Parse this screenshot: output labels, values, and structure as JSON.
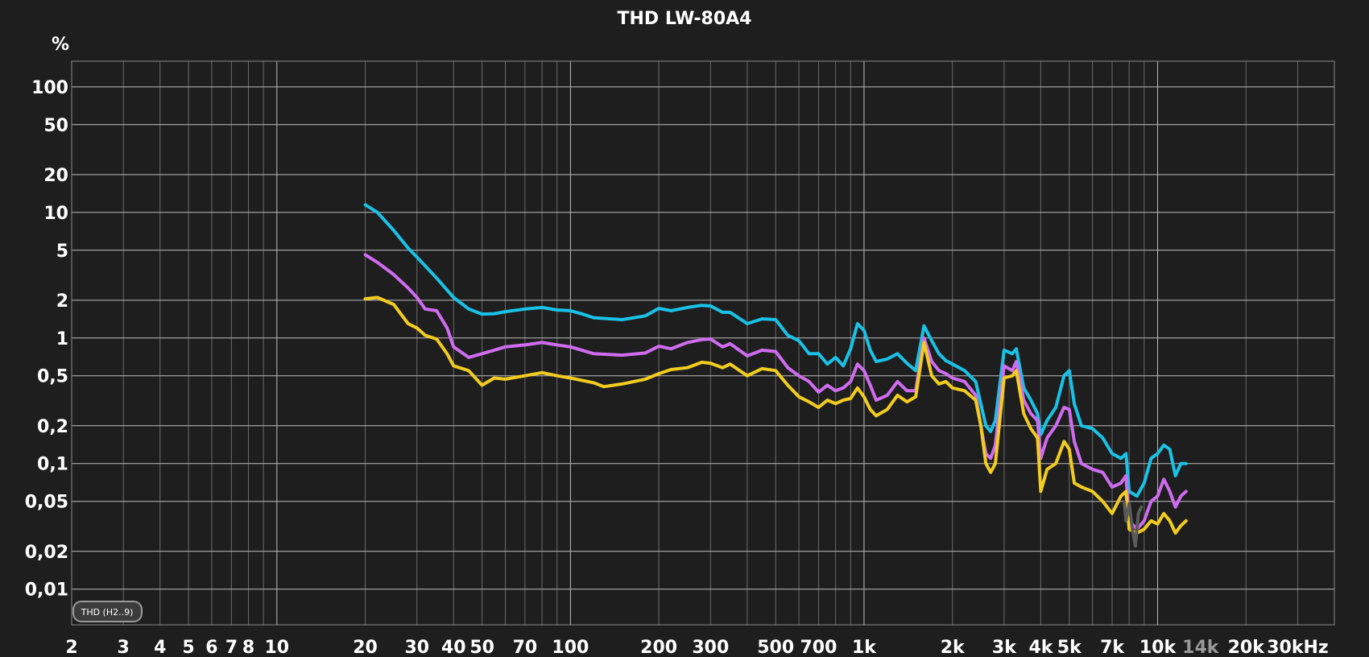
{
  "chart_data": {
    "type": "line",
    "title": "THD LW-80A4",
    "ylabel": "%",
    "xlabel": "",
    "x_scale": "log",
    "y_scale": "log",
    "xlim": [
      2,
      40000
    ],
    "ylim": [
      0.0052,
      160
    ],
    "grid": true,
    "legend": "none",
    "badge": "THD (H2..9)",
    "colors": {
      "background": "#1e1e1e",
      "grid": "#6a6a6a",
      "grid_major": "#bdbdbd"
    },
    "x_ticks": [
      {
        "value": 2,
        "label": "2"
      },
      {
        "value": 3,
        "label": "3"
      },
      {
        "value": 4,
        "label": "4"
      },
      {
        "value": 5,
        "label": "5"
      },
      {
        "value": 6,
        "label": "6"
      },
      {
        "value": 7,
        "label": "7"
      },
      {
        "value": 8,
        "label": "8"
      },
      {
        "value": 10,
        "label": "10"
      },
      {
        "value": 20,
        "label": "20"
      },
      {
        "value": 30,
        "label": "30"
      },
      {
        "value": 40,
        "label": "40"
      },
      {
        "value": 50,
        "label": "50"
      },
      {
        "value": 70,
        "label": "70"
      },
      {
        "value": 100,
        "label": "100"
      },
      {
        "value": 200,
        "label": "200"
      },
      {
        "value": 300,
        "label": "300"
      },
      {
        "value": 500,
        "label": "500"
      },
      {
        "value": 700,
        "label": "700"
      },
      {
        "value": 1000,
        "label": "1k"
      },
      {
        "value": 2000,
        "label": "2k"
      },
      {
        "value": 3000,
        "label": "3k"
      },
      {
        "value": 4000,
        "label": "4k"
      },
      {
        "value": 5000,
        "label": "5k"
      },
      {
        "value": 7000,
        "label": "7k"
      },
      {
        "value": 10000,
        "label": "10k"
      },
      {
        "value": 14000,
        "label": "14k",
        "dim": true
      },
      {
        "value": 20000,
        "label": "20k"
      },
      {
        "value": 30000,
        "label": "30kHz"
      }
    ],
    "y_ticks": [
      {
        "value": 100,
        "label": "100"
      },
      {
        "value": 50,
        "label": "50"
      },
      {
        "value": 20,
        "label": "20"
      },
      {
        "value": 10,
        "label": "10"
      },
      {
        "value": 5,
        "label": "5"
      },
      {
        "value": 2,
        "label": "2"
      },
      {
        "value": 1,
        "label": "1"
      },
      {
        "value": 0.5,
        "label": "0,5"
      },
      {
        "value": 0.2,
        "label": "0,2"
      },
      {
        "value": 0.1,
        "label": "0,1"
      },
      {
        "value": 0.05,
        "label": "0,05"
      },
      {
        "value": 0.02,
        "label": "0,02"
      },
      {
        "value": 0.01,
        "label": "0,01"
      }
    ],
    "series": [
      {
        "color": "#19c2e6",
        "points": [
          [
            20,
            11.5
          ],
          [
            22,
            10
          ],
          [
            25,
            7.2
          ],
          [
            28,
            5.2
          ],
          [
            30,
            4.4
          ],
          [
            35,
            3.0
          ],
          [
            40,
            2.1
          ],
          [
            45,
            1.7
          ],
          [
            50,
            1.55
          ],
          [
            55,
            1.56
          ],
          [
            60,
            1.62
          ],
          [
            70,
            1.7
          ],
          [
            80,
            1.75
          ],
          [
            90,
            1.67
          ],
          [
            100,
            1.65
          ],
          [
            110,
            1.55
          ],
          [
            120,
            1.45
          ],
          [
            150,
            1.4
          ],
          [
            180,
            1.5
          ],
          [
            200,
            1.72
          ],
          [
            220,
            1.65
          ],
          [
            250,
            1.75
          ],
          [
            280,
            1.82
          ],
          [
            300,
            1.8
          ],
          [
            330,
            1.6
          ],
          [
            350,
            1.6
          ],
          [
            400,
            1.3
          ],
          [
            450,
            1.42
          ],
          [
            500,
            1.4
          ],
          [
            550,
            1.05
          ],
          [
            600,
            0.95
          ],
          [
            650,
            0.75
          ],
          [
            700,
            0.75
          ],
          [
            750,
            0.62
          ],
          [
            800,
            0.7
          ],
          [
            850,
            0.6
          ],
          [
            900,
            0.82
          ],
          [
            950,
            1.3
          ],
          [
            1000,
            1.15
          ],
          [
            1050,
            0.8
          ],
          [
            1100,
            0.65
          ],
          [
            1200,
            0.68
          ],
          [
            1300,
            0.75
          ],
          [
            1400,
            0.63
          ],
          [
            1500,
            0.55
          ],
          [
            1600,
            1.25
          ],
          [
            1700,
            0.95
          ],
          [
            1800,
            0.75
          ],
          [
            1900,
            0.66
          ],
          [
            2000,
            0.62
          ],
          [
            2200,
            0.55
          ],
          [
            2400,
            0.45
          ],
          [
            2600,
            0.2
          ],
          [
            2700,
            0.18
          ],
          [
            2800,
            0.22
          ],
          [
            3000,
            0.8
          ],
          [
            3200,
            0.75
          ],
          [
            3300,
            0.82
          ],
          [
            3500,
            0.4
          ],
          [
            3700,
            0.32
          ],
          [
            3900,
            0.25
          ],
          [
            4000,
            0.17
          ],
          [
            4200,
            0.22
          ],
          [
            4500,
            0.28
          ],
          [
            4800,
            0.5
          ],
          [
            5000,
            0.55
          ],
          [
            5200,
            0.3
          ],
          [
            5500,
            0.2
          ],
          [
            6000,
            0.19
          ],
          [
            6500,
            0.16
          ],
          [
            7000,
            0.12
          ],
          [
            7500,
            0.11
          ],
          [
            7800,
            0.12
          ],
          [
            8000,
            0.06
          ],
          [
            8500,
            0.055
          ],
          [
            9000,
            0.07
          ],
          [
            9500,
            0.11
          ],
          [
            10000,
            0.12
          ],
          [
            10500,
            0.14
          ],
          [
            11000,
            0.13
          ],
          [
            11500,
            0.08
          ],
          [
            12000,
            0.1
          ],
          [
            12500,
            0.1
          ]
        ]
      },
      {
        "color": "#cf6cf0",
        "points": [
          [
            20,
            4.6
          ],
          [
            22,
            4.0
          ],
          [
            25,
            3.2
          ],
          [
            28,
            2.5
          ],
          [
            30,
            2.1
          ],
          [
            32,
            1.7
          ],
          [
            35,
            1.65
          ],
          [
            38,
            1.2
          ],
          [
            40,
            0.85
          ],
          [
            45,
            0.7
          ],
          [
            50,
            0.75
          ],
          [
            55,
            0.8
          ],
          [
            60,
            0.85
          ],
          [
            70,
            0.88
          ],
          [
            80,
            0.92
          ],
          [
            90,
            0.88
          ],
          [
            100,
            0.85
          ],
          [
            120,
            0.75
          ],
          [
            150,
            0.73
          ],
          [
            180,
            0.76
          ],
          [
            200,
            0.86
          ],
          [
            220,
            0.82
          ],
          [
            250,
            0.92
          ],
          [
            280,
            0.97
          ],
          [
            300,
            0.98
          ],
          [
            330,
            0.85
          ],
          [
            350,
            0.9
          ],
          [
            400,
            0.72
          ],
          [
            450,
            0.8
          ],
          [
            500,
            0.78
          ],
          [
            550,
            0.58
          ],
          [
            600,
            0.5
          ],
          [
            650,
            0.45
          ],
          [
            700,
            0.37
          ],
          [
            750,
            0.42
          ],
          [
            800,
            0.38
          ],
          [
            850,
            0.4
          ],
          [
            900,
            0.45
          ],
          [
            950,
            0.62
          ],
          [
            1000,
            0.55
          ],
          [
            1050,
            0.42
          ],
          [
            1100,
            0.32
          ],
          [
            1200,
            0.35
          ],
          [
            1300,
            0.45
          ],
          [
            1400,
            0.38
          ],
          [
            1500,
            0.38
          ],
          [
            1600,
            1.0
          ],
          [
            1700,
            0.65
          ],
          [
            1800,
            0.55
          ],
          [
            1900,
            0.52
          ],
          [
            2000,
            0.48
          ],
          [
            2200,
            0.45
          ],
          [
            2400,
            0.35
          ],
          [
            2500,
            0.2
          ],
          [
            2600,
            0.12
          ],
          [
            2700,
            0.11
          ],
          [
            2800,
            0.14
          ],
          [
            3000,
            0.6
          ],
          [
            3200,
            0.55
          ],
          [
            3300,
            0.65
          ],
          [
            3500,
            0.32
          ],
          [
            3700,
            0.25
          ],
          [
            3900,
            0.22
          ],
          [
            4000,
            0.11
          ],
          [
            4200,
            0.16
          ],
          [
            4500,
            0.2
          ],
          [
            4800,
            0.28
          ],
          [
            5000,
            0.27
          ],
          [
            5200,
            0.15
          ],
          [
            5500,
            0.1
          ],
          [
            6000,
            0.09
          ],
          [
            6500,
            0.085
          ],
          [
            7000,
            0.065
          ],
          [
            7500,
            0.07
          ],
          [
            7800,
            0.08
          ],
          [
            8000,
            0.035
          ],
          [
            8500,
            0.03
          ],
          [
            9000,
            0.035
          ],
          [
            9500,
            0.05
          ],
          [
            10000,
            0.055
          ],
          [
            10500,
            0.075
          ],
          [
            11000,
            0.06
          ],
          [
            11500,
            0.045
          ],
          [
            12000,
            0.055
          ],
          [
            12500,
            0.06
          ]
        ]
      },
      {
        "color": "#f2cc1e",
        "points": [
          [
            20,
            2.05
          ],
          [
            22,
            2.1
          ],
          [
            25,
            1.85
          ],
          [
            28,
            1.3
          ],
          [
            30,
            1.2
          ],
          [
            32,
            1.05
          ],
          [
            35,
            0.98
          ],
          [
            38,
            0.75
          ],
          [
            40,
            0.6
          ],
          [
            45,
            0.55
          ],
          [
            50,
            0.42
          ],
          [
            55,
            0.48
          ],
          [
            60,
            0.47
          ],
          [
            70,
            0.5
          ],
          [
            80,
            0.53
          ],
          [
            90,
            0.5
          ],
          [
            100,
            0.48
          ],
          [
            120,
            0.44
          ],
          [
            130,
            0.41
          ],
          [
            150,
            0.43
          ],
          [
            180,
            0.47
          ],
          [
            200,
            0.52
          ],
          [
            220,
            0.56
          ],
          [
            250,
            0.58
          ],
          [
            280,
            0.64
          ],
          [
            300,
            0.63
          ],
          [
            330,
            0.58
          ],
          [
            350,
            0.62
          ],
          [
            400,
            0.5
          ],
          [
            450,
            0.57
          ],
          [
            500,
            0.55
          ],
          [
            550,
            0.42
          ],
          [
            600,
            0.34
          ],
          [
            650,
            0.31
          ],
          [
            700,
            0.28
          ],
          [
            750,
            0.32
          ],
          [
            800,
            0.3
          ],
          [
            850,
            0.32
          ],
          [
            900,
            0.33
          ],
          [
            950,
            0.4
          ],
          [
            1000,
            0.34
          ],
          [
            1050,
            0.27
          ],
          [
            1100,
            0.24
          ],
          [
            1200,
            0.27
          ],
          [
            1300,
            0.35
          ],
          [
            1400,
            0.31
          ],
          [
            1500,
            0.34
          ],
          [
            1600,
            0.92
          ],
          [
            1700,
            0.5
          ],
          [
            1800,
            0.43
          ],
          [
            1900,
            0.45
          ],
          [
            2000,
            0.4
          ],
          [
            2200,
            0.38
          ],
          [
            2400,
            0.32
          ],
          [
            2500,
            0.2
          ],
          [
            2600,
            0.1
          ],
          [
            2700,
            0.085
          ],
          [
            2800,
            0.1
          ],
          [
            3000,
            0.48
          ],
          [
            3200,
            0.5
          ],
          [
            3300,
            0.55
          ],
          [
            3500,
            0.25
          ],
          [
            3700,
            0.19
          ],
          [
            3900,
            0.16
          ],
          [
            4000,
            0.06
          ],
          [
            4200,
            0.09
          ],
          [
            4500,
            0.1
          ],
          [
            4800,
            0.15
          ],
          [
            5000,
            0.13
          ],
          [
            5200,
            0.07
          ],
          [
            5500,
            0.065
          ],
          [
            6000,
            0.06
          ],
          [
            6500,
            0.05
          ],
          [
            7000,
            0.04
          ],
          [
            7500,
            0.055
          ],
          [
            7800,
            0.06
          ],
          [
            8000,
            0.03
          ],
          [
            8500,
            0.028
          ],
          [
            9000,
            0.03
          ],
          [
            9500,
            0.035
          ],
          [
            10000,
            0.033
          ],
          [
            10500,
            0.04
          ],
          [
            11000,
            0.035
          ],
          [
            11500,
            0.028
          ],
          [
            12000,
            0.032
          ],
          [
            12500,
            0.035
          ]
        ]
      },
      {
        "color": "#5a5a5a",
        "points": [
          [
            7700,
            0.05
          ],
          [
            7800,
            0.035
          ],
          [
            8000,
            0.048
          ],
          [
            8200,
            0.03
          ],
          [
            8400,
            0.022
          ],
          [
            8600,
            0.04
          ],
          [
            8800,
            0.045
          ]
        ]
      }
    ]
  }
}
